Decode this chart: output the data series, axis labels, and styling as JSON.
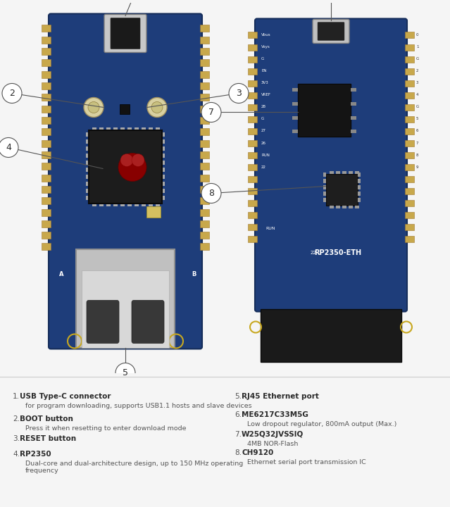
{
  "bg_color": "#f5f5f5",
  "white_area_color": "#ffffff",
  "text_area_color": "#ebebeb",
  "board_blue": "#1e3d7a",
  "board_blue_dark": "#152d5a",
  "board_blue_light": "#2a4d8f",
  "pin_gold": "#c8a84b",
  "pin_gold_dark": "#a07830",
  "usb_silver": "#b0b0b0",
  "usb_dark": "#2a2a2a",
  "chip_dark": "#1a1a1a",
  "eth_silver": "#b8b8b8",
  "eth_dark": "#282828",
  "btn_cream": "#d0c898",
  "callout_circle_bg": "#ffffff",
  "callout_circle_edge": "#555555",
  "callout_line_color": "#555555",
  "text_dark": "#2a2a2a",
  "text_gray": "#555555",
  "text_light": "#777777",
  "left_items": [
    {
      "num": "1",
      "bold": "USB Type-C connector",
      "desc": "for program downloading, supports USB1.1 hosts and slave devices"
    },
    {
      "num": "2",
      "bold": "BOOT button",
      "desc": "Press it when resetting to enter download mode"
    },
    {
      "num": "3",
      "bold": "RESET button",
      "desc": ""
    },
    {
      "num": "4",
      "bold": "RP2350",
      "desc": "Dual-core and dual-architecture design, up to 150 MHz operating\nfrequency"
    }
  ],
  "right_items": [
    {
      "num": "5",
      "bold": "RJ45 Ethernet port",
      "desc": ""
    },
    {
      "num": "6",
      "bold": "ME6217C33M5G",
      "desc": "Low dropout regulator, 800mA output (Max.)"
    },
    {
      "num": "7",
      "bold": "W25Q32JVSSIQ",
      "desc": "4MB NOR-Flash"
    },
    {
      "num": "8",
      "bold": "CH9120",
      "desc": "Ethernet serial port transmission IC"
    }
  ]
}
